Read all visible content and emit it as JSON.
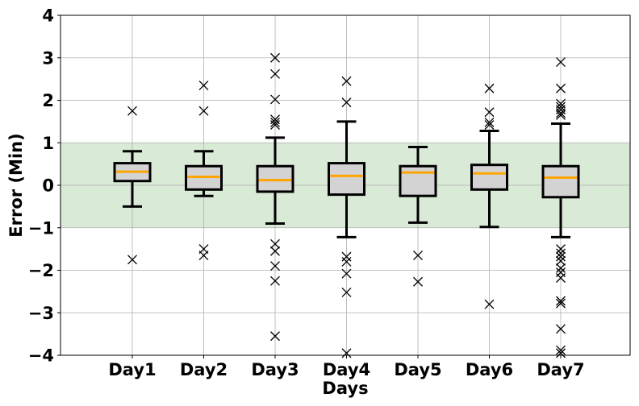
{
  "chart_data": {
    "type": "box",
    "xlabel": "Days",
    "ylabel": "Error (Min)",
    "ylim": [
      -4,
      4
    ],
    "yticks": [
      {
        "value": -4,
        "label": "−4"
      },
      {
        "value": -3,
        "label": "−3"
      },
      {
        "value": -2,
        "label": "−2"
      },
      {
        "value": -1,
        "label": "−1"
      },
      {
        "value": 0,
        "label": "0"
      },
      {
        "value": 1,
        "label": "1"
      },
      {
        "value": 2,
        "label": "2"
      },
      {
        "value": 3,
        "label": "3"
      },
      {
        "value": 4,
        "label": "4"
      }
    ],
    "grid": true,
    "band": {
      "from": -1,
      "to": 1,
      "color": "#d9ead7"
    },
    "colors": {
      "box_fill": "#d3d3d3",
      "median": "#ffa500",
      "outline": "#000000",
      "grid": "#b0b0b0"
    },
    "categories": [
      "Day1",
      "Day2",
      "Day3",
      "Day4",
      "Day5",
      "Day6",
      "Day7"
    ],
    "boxes": [
      {
        "whisker_low": -0.5,
        "q1": 0.1,
        "median": 0.32,
        "q3": 0.52,
        "whisker_high": 0.8,
        "outliers": [
          1.75,
          -1.75
        ]
      },
      {
        "whisker_low": -0.25,
        "q1": -0.1,
        "median": 0.2,
        "q3": 0.45,
        "whisker_high": 0.8,
        "outliers": [
          2.35,
          1.75,
          -1.5,
          -1.65
        ]
      },
      {
        "whisker_low": -0.9,
        "q1": -0.15,
        "median": 0.12,
        "q3": 0.45,
        "whisker_high": 1.12,
        "outliers": [
          3.0,
          2.62,
          2.02,
          1.55,
          1.48,
          1.42,
          -1.38,
          -1.55,
          -1.9,
          -2.25,
          -3.55
        ]
      },
      {
        "whisker_low": -1.22,
        "q1": -0.22,
        "median": 0.22,
        "q3": 0.52,
        "whisker_high": 1.5,
        "outliers": [
          2.45,
          1.95,
          -1.68,
          -1.8,
          -2.08,
          -2.52,
          -3.95
        ]
      },
      {
        "whisker_low": -0.88,
        "q1": -0.25,
        "median": 0.3,
        "q3": 0.45,
        "whisker_high": 0.9,
        "outliers": [
          -1.65,
          -2.27
        ]
      },
      {
        "whisker_low": -0.98,
        "q1": -0.1,
        "median": 0.28,
        "q3": 0.48,
        "whisker_high": 1.28,
        "outliers": [
          2.28,
          1.72,
          1.48,
          1.42,
          -2.8
        ]
      },
      {
        "whisker_low": -1.22,
        "q1": -0.28,
        "median": 0.18,
        "q3": 0.45,
        "whisker_high": 1.45,
        "outliers": [
          2.9,
          2.28,
          1.92,
          1.85,
          1.78,
          1.7,
          1.65,
          -1.5,
          -1.6,
          -1.68,
          -1.78,
          -1.95,
          -2.05,
          -2.18,
          -2.72,
          -2.78,
          -3.38,
          -3.88,
          -3.95
        ]
      }
    ]
  }
}
